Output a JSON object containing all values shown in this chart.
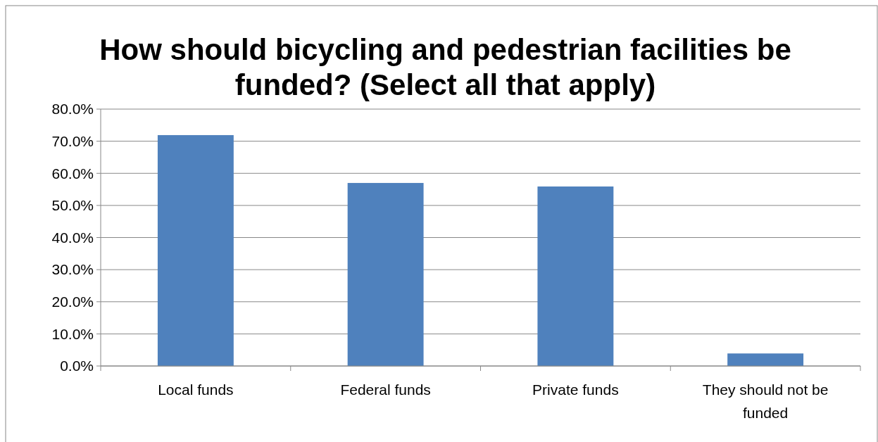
{
  "chart_data": {
    "type": "bar",
    "title": "How should bicycling and pedestrian facilities be funded? (Select all that apply)",
    "categories": [
      "Local funds",
      "Federal funds",
      "Private funds",
      "They should not be funded"
    ],
    "values": [
      71.9,
      57.0,
      55.9,
      3.9
    ],
    "color": "#4f81bd",
    "ylim": [
      0,
      80
    ],
    "yticks": [
      {
        "value": 0,
        "label": "0.0%"
      },
      {
        "value": 10,
        "label": "10.0%"
      },
      {
        "value": 20,
        "label": "20.0%"
      },
      {
        "value": 30,
        "label": "30.0%"
      },
      {
        "value": 40,
        "label": "40.0%"
      },
      {
        "value": 50,
        "label": "50.0%"
      },
      {
        "value": 60,
        "label": "60.0%"
      },
      {
        "value": 70,
        "label": "70.0%"
      },
      {
        "value": 80,
        "label": "80.0%"
      }
    ],
    "grid": "y"
  }
}
